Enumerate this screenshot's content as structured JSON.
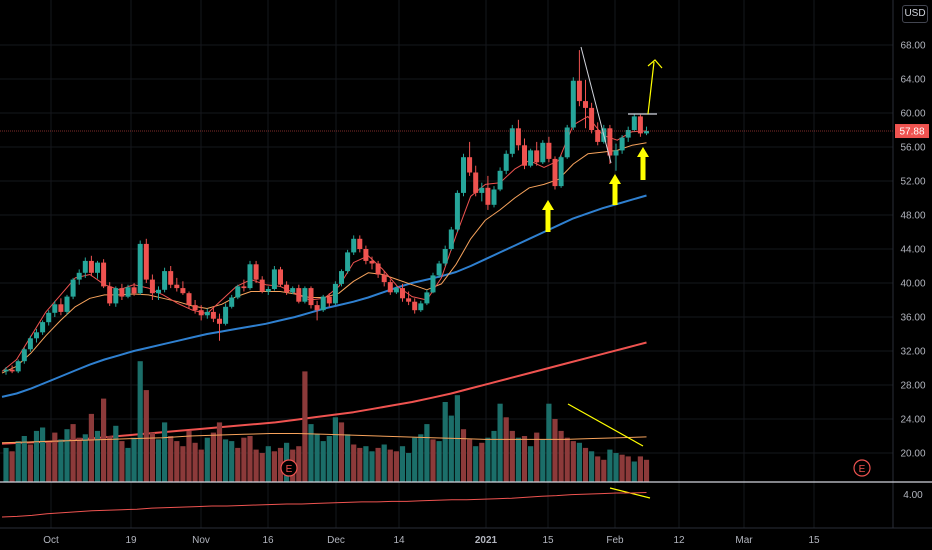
{
  "currency": "USD",
  "last_price_label": "57.88",
  "earnings_marker": "E",
  "chart_data": {
    "type": "candlestick",
    "title": "",
    "price_axis": {
      "ticks": [
        "68.00",
        "64.00",
        "60.00",
        "56.00",
        "52.00",
        "48.00",
        "44.00",
        "40.00",
        "36.00",
        "32.00",
        "28.00",
        "24.00",
        "20.00"
      ],
      "range": [
        17,
        71
      ]
    },
    "indicator_axis": {
      "ticks": [
        "4.00"
      ]
    },
    "x_axis": {
      "ticks": [
        "Oct",
        "19",
        "Nov",
        "16",
        "Dec",
        "14",
        "2021",
        "15",
        "Feb",
        "12",
        "Mar",
        "15"
      ]
    },
    "last_price": 57.88,
    "colors": {
      "up": "#26a69a",
      "down": "#ef5350",
      "ma_fast": "#ef5350",
      "ma_mid": "#f7a35c",
      "ma_50": "#2f80d0",
      "ma_200": "#ef5350",
      "annotation": "#ffff00"
    },
    "candles": [
      [
        29.6,
        30.1,
        29.2,
        29.8
      ],
      [
        29.8,
        30.3,
        29.4,
        29.6
      ],
      [
        29.6,
        31.0,
        29.4,
        30.8
      ],
      [
        30.8,
        32.4,
        30.5,
        32.2
      ],
      [
        32.2,
        33.8,
        31.9,
        33.5
      ],
      [
        33.5,
        34.6,
        33.0,
        34.2
      ],
      [
        34.2,
        35.6,
        33.9,
        35.4
      ],
      [
        35.4,
        36.8,
        35.0,
        36.5
      ],
      [
        36.5,
        37.9,
        36.0,
        37.5
      ],
      [
        37.5,
        38.2,
        36.2,
        36.6
      ],
      [
        36.6,
        38.6,
        36.3,
        38.4
      ],
      [
        38.4,
        40.6,
        38.1,
        40.4
      ],
      [
        40.4,
        41.6,
        39.8,
        41.2
      ],
      [
        41.2,
        43.0,
        40.6,
        42.6
      ],
      [
        42.6,
        43.2,
        40.8,
        41.2
      ],
      [
        41.2,
        42.6,
        40.5,
        42.4
      ],
      [
        42.4,
        42.8,
        39.4,
        39.6
      ],
      [
        39.6,
        40.1,
        37.3,
        37.6
      ],
      [
        37.6,
        39.6,
        37.2,
        39.4
      ],
      [
        39.4,
        39.9,
        38.0,
        38.4
      ],
      [
        38.4,
        39.8,
        38.2,
        39.5
      ],
      [
        39.5,
        40.0,
        38.5,
        38.8
      ],
      [
        38.8,
        45.0,
        38.6,
        44.6
      ],
      [
        44.6,
        45.2,
        40.0,
        40.4
      ],
      [
        40.4,
        41.0,
        38.0,
        38.8
      ],
      [
        38.8,
        39.6,
        38.0,
        39.2
      ],
      [
        39.2,
        41.8,
        38.9,
        41.4
      ],
      [
        41.4,
        42.0,
        39.4,
        39.8
      ],
      [
        39.8,
        40.6,
        39.0,
        39.4
      ],
      [
        39.4,
        40.2,
        38.6,
        38.8
      ],
      [
        38.8,
        39.0,
        37.0,
        37.4
      ],
      [
        37.4,
        38.0,
        36.4,
        36.8
      ],
      [
        36.8,
        37.4,
        35.6,
        36.2
      ],
      [
        36.2,
        37.0,
        35.8,
        36.6
      ],
      [
        36.6,
        37.2,
        35.4,
        35.8
      ],
      [
        35.8,
        36.4,
        33.2,
        35.2
      ],
      [
        35.2,
        37.6,
        35.0,
        37.2
      ],
      [
        37.2,
        38.6,
        37.0,
        38.3
      ],
      [
        38.3,
        39.8,
        38.1,
        39.6
      ],
      [
        39.6,
        40.4,
        39.0,
        39.4
      ],
      [
        39.4,
        42.6,
        39.2,
        42.2
      ],
      [
        42.2,
        42.6,
        40.0,
        40.4
      ],
      [
        40.4,
        40.8,
        38.8,
        39.0
      ],
      [
        39.0,
        39.6,
        38.6,
        39.3
      ],
      [
        39.3,
        42.0,
        39.1,
        41.6
      ],
      [
        41.6,
        41.9,
        39.6,
        39.8
      ],
      [
        39.8,
        40.2,
        38.6,
        38.9
      ],
      [
        38.9,
        39.6,
        38.7,
        39.4
      ],
      [
        39.4,
        39.8,
        37.6,
        37.8
      ],
      [
        37.8,
        39.6,
        37.6,
        39.4
      ],
      [
        39.4,
        39.6,
        37.0,
        37.4
      ],
      [
        37.4,
        37.9,
        35.6,
        36.8
      ],
      [
        36.8,
        38.6,
        36.6,
        38.4
      ],
      [
        38.4,
        38.8,
        37.2,
        37.6
      ],
      [
        37.6,
        40.2,
        37.4,
        39.9
      ],
      [
        39.9,
        41.6,
        39.6,
        41.4
      ],
      [
        41.4,
        43.9,
        41.1,
        43.6
      ],
      [
        43.6,
        45.6,
        43.3,
        45.2
      ],
      [
        45.2,
        45.6,
        43.6,
        44.0
      ],
      [
        44.0,
        44.4,
        42.2,
        42.6
      ],
      [
        42.6,
        43.1,
        41.6,
        42.3
      ],
      [
        42.3,
        42.6,
        40.6,
        41.0
      ],
      [
        41.0,
        41.4,
        39.6,
        40.1
      ],
      [
        40.1,
        40.4,
        38.6,
        38.9
      ],
      [
        38.9,
        39.6,
        38.7,
        39.4
      ],
      [
        39.4,
        39.9,
        37.8,
        38.2
      ],
      [
        38.2,
        39.0,
        37.4,
        37.8
      ],
      [
        37.8,
        38.2,
        36.4,
        36.8
      ],
      [
        36.8,
        37.9,
        36.6,
        37.6
      ],
      [
        37.6,
        39.2,
        37.4,
        38.9
      ],
      [
        38.9,
        41.2,
        38.8,
        40.9
      ],
      [
        40.9,
        42.6,
        40.6,
        42.3
      ],
      [
        42.3,
        44.4,
        42.0,
        44.0
      ],
      [
        44.0,
        46.6,
        43.8,
        46.3
      ],
      [
        46.3,
        50.9,
        46.0,
        50.6
      ],
      [
        50.6,
        55.2,
        50.2,
        54.8
      ],
      [
        54.8,
        56.6,
        52.6,
        53.0
      ],
      [
        53.0,
        53.8,
        50.2,
        50.6
      ],
      [
        50.6,
        51.8,
        49.6,
        51.2
      ],
      [
        51.2,
        52.6,
        48.6,
        49.2
      ],
      [
        49.2,
        51.4,
        48.9,
        51.0
      ],
      [
        51.0,
        53.6,
        50.8,
        53.2
      ],
      [
        53.2,
        55.6,
        52.8,
        55.2
      ],
      [
        55.2,
        58.6,
        54.8,
        58.2
      ],
      [
        58.2,
        59.2,
        55.6,
        56.2
      ],
      [
        56.2,
        57.0,
        53.4,
        53.8
      ],
      [
        53.8,
        55.8,
        53.6,
        55.6
      ],
      [
        55.6,
        56.6,
        53.8,
        54.2
      ],
      [
        54.2,
        56.8,
        54.0,
        56.5
      ],
      [
        56.5,
        57.2,
        54.2,
        54.6
      ],
      [
        54.6,
        54.9,
        51.0,
        51.4
      ],
      [
        51.4,
        55.0,
        51.2,
        54.8
      ],
      [
        54.8,
        58.6,
        54.6,
        58.3
      ],
      [
        58.3,
        64.2,
        58.0,
        63.8
      ],
      [
        63.8,
        67.4,
        60.8,
        61.4
      ],
      [
        61.4,
        63.9,
        58.2,
        60.6
      ],
      [
        60.6,
        61.2,
        57.6,
        58.0
      ],
      [
        58.0,
        58.9,
        56.2,
        56.6
      ],
      [
        56.6,
        58.6,
        56.4,
        58.2
      ],
      [
        58.2,
        58.6,
        54.0,
        55.0
      ],
      [
        55.0,
        56.4,
        53.2,
        55.6
      ],
      [
        55.6,
        57.4,
        55.2,
        57.1
      ],
      [
        57.1,
        58.4,
        56.6,
        58.0
      ],
      [
        58.0,
        59.9,
        57.8,
        59.6
      ],
      [
        59.6,
        59.8,
        57.2,
        57.6
      ],
      [
        57.6,
        58.4,
        57.4,
        57.88
      ]
    ],
    "volume": [
      [
        20.6,
        "up"
      ],
      [
        20.2,
        "down"
      ],
      [
        21.4,
        "up"
      ],
      [
        22.0,
        "up"
      ],
      [
        21.0,
        "down"
      ],
      [
        22.6,
        "up"
      ],
      [
        23.0,
        "up"
      ],
      [
        21.2,
        "down"
      ],
      [
        22.4,
        "down"
      ],
      [
        21.6,
        "up"
      ],
      [
        22.8,
        "up"
      ],
      [
        23.4,
        "down"
      ],
      [
        21.8,
        "down"
      ],
      [
        22.2,
        "up"
      ],
      [
        24.6,
        "down"
      ],
      [
        22.6,
        "up"
      ],
      [
        26.4,
        "down"
      ],
      [
        22.0,
        "down"
      ],
      [
        23.2,
        "up"
      ],
      [
        21.4,
        "down"
      ],
      [
        20.6,
        "up"
      ],
      [
        21.8,
        "up"
      ],
      [
        30.8,
        "up"
      ],
      [
        27.4,
        "down"
      ],
      [
        22.4,
        "down"
      ],
      [
        21.6,
        "up"
      ],
      [
        23.6,
        "up"
      ],
      [
        22.0,
        "down"
      ],
      [
        21.4,
        "down"
      ],
      [
        20.8,
        "down"
      ],
      [
        22.6,
        "down"
      ],
      [
        21.2,
        "down"
      ],
      [
        20.4,
        "down"
      ],
      [
        21.8,
        "up"
      ],
      [
        22.4,
        "down"
      ],
      [
        23.6,
        "down"
      ],
      [
        21.6,
        "up"
      ],
      [
        21.4,
        "up"
      ],
      [
        20.6,
        "down"
      ],
      [
        21.8,
        "down"
      ],
      [
        22.0,
        "down"
      ],
      [
        20.4,
        "down"
      ],
      [
        20.0,
        "down"
      ],
      [
        20.8,
        "up"
      ],
      [
        20.2,
        "down"
      ],
      [
        20.6,
        "down"
      ],
      [
        21.2,
        "up"
      ],
      [
        20.4,
        "down"
      ],
      [
        20.8,
        "down"
      ],
      [
        29.6,
        "down"
      ],
      [
        23.4,
        "up"
      ],
      [
        22.2,
        "up"
      ],
      [
        21.4,
        "up"
      ],
      [
        22.0,
        "up"
      ],
      [
        24.2,
        "up"
      ],
      [
        23.6,
        "down"
      ],
      [
        22.2,
        "up"
      ],
      [
        21.0,
        "down"
      ],
      [
        20.6,
        "down"
      ],
      [
        20.8,
        "up"
      ],
      [
        20.2,
        "up"
      ],
      [
        20.6,
        "down"
      ],
      [
        21.0,
        "up"
      ],
      [
        20.4,
        "down"
      ],
      [
        20.2,
        "down"
      ],
      [
        20.8,
        "up"
      ],
      [
        20.0,
        "up"
      ],
      [
        21.8,
        "up"
      ],
      [
        22.2,
        "up"
      ],
      [
        23.4,
        "up"
      ],
      [
        21.6,
        "down"
      ],
      [
        21.4,
        "up"
      ],
      [
        26.0,
        "up"
      ],
      [
        24.4,
        "up"
      ],
      [
        26.8,
        "up"
      ],
      [
        22.8,
        "down"
      ],
      [
        21.6,
        "down"
      ],
      [
        20.8,
        "up"
      ],
      [
        21.2,
        "down"
      ],
      [
        21.8,
        "up"
      ],
      [
        22.6,
        "up"
      ],
      [
        25.8,
        "up"
      ],
      [
        24.2,
        "down"
      ],
      [
        22.6,
        "down"
      ],
      [
        21.8,
        "up"
      ],
      [
        22.0,
        "down"
      ],
      [
        20.8,
        "up"
      ],
      [
        22.4,
        "down"
      ],
      [
        21.6,
        "up"
      ],
      [
        25.8,
        "up"
      ],
      [
        24.0,
        "down"
      ],
      [
        22.6,
        "down"
      ],
      [
        21.8,
        "down"
      ],
      [
        21.4,
        "down"
      ],
      [
        21.2,
        "up"
      ],
      [
        20.6,
        "down"
      ],
      [
        20.2,
        "up"
      ],
      [
        19.6,
        "down"
      ],
      [
        19.2,
        "down"
      ],
      [
        20.4,
        "up"
      ],
      [
        20.0,
        "up"
      ],
      [
        19.8,
        "down"
      ],
      [
        19.6,
        "down"
      ],
      [
        19.0,
        "up"
      ],
      [
        19.6,
        "down"
      ],
      [
        19.2,
        "down"
      ]
    ],
    "volume_ma": [
      21.2,
      21.3,
      21.4,
      21.5,
      21.6,
      21.7,
      21.8,
      22.0,
      22.1,
      22.2,
      22.3,
      22.3,
      22.2,
      22.1,
      22.0,
      21.9,
      21.8,
      21.7,
      21.6,
      21.6,
      21.6,
      21.6,
      21.7,
      21.8,
      21.9
    ],
    "ma_fast": [
      29.6,
      31.0,
      33.8,
      36.6,
      38.6,
      40.6,
      41.0,
      39.8,
      39.2,
      39.8,
      39.4,
      38.6,
      37.6,
      36.8,
      36.4,
      38.0,
      39.6,
      40.4,
      39.8,
      39.6,
      38.8,
      38.0,
      38.2,
      39.6,
      42.4,
      43.2,
      41.6,
      39.6,
      38.4,
      38.0,
      40.6,
      45.6,
      50.2,
      51.6,
      51.8,
      53.4,
      54.4,
      53.6,
      54.4,
      58.6,
      59.6,
      57.4,
      56.8,
      57.8,
      57.9
    ],
    "ma_mid": [
      29.4,
      30.2,
      31.8,
      33.8,
      35.6,
      37.2,
      38.2,
      38.6,
      38.6,
      38.7,
      38.6,
      38.2,
      37.8,
      37.3,
      37.0,
      37.5,
      38.4,
      39.0,
      39.0,
      39.0,
      38.7,
      38.3,
      38.3,
      38.8,
      40.2,
      41.2,
      41.0,
      40.4,
      39.8,
      39.2,
      39.9,
      42.2,
      45.2,
      47.4,
      48.6,
      50.0,
      51.2,
      51.6,
      52.2,
      54.0,
      55.2,
      55.4,
      55.6,
      56.2,
      56.5
    ],
    "ma_50": [
      26.6,
      27.0,
      27.6,
      28.3,
      29.0,
      29.7,
      30.4,
      31.0,
      31.5,
      32.0,
      32.4,
      32.8,
      33.2,
      33.6,
      34.0,
      34.3,
      34.6,
      34.9,
      35.2,
      35.6,
      36.0,
      36.5,
      37.0,
      37.4,
      37.8,
      38.3,
      38.9,
      39.5,
      40.0,
      40.4,
      40.8,
      41.3,
      42.0,
      42.8,
      43.6,
      44.4,
      45.2,
      46.0,
      46.8,
      47.6,
      48.2,
      48.8,
      49.3,
      49.8,
      50.3
    ],
    "ma_200": [
      21.1,
      21.2,
      21.3,
      21.4,
      21.6,
      21.8,
      22.0,
      22.2,
      22.4,
      22.6,
      22.8,
      23.0,
      23.2,
      23.4,
      23.6,
      23.9,
      24.2,
      24.5,
      24.8,
      25.2,
      25.6,
      26.0,
      26.5,
      27.0,
      27.6,
      28.2,
      28.8,
      29.4,
      30.0,
      30.6,
      31.2,
      31.8,
      32.4,
      33.0
    ],
    "indicator": [
      0.2,
      0.3,
      0.5,
      0.8,
      1.0,
      1.2,
      1.4,
      1.5,
      1.6,
      1.7,
      1.9,
      2.0,
      2.1,
      2.2,
      2.3,
      2.3,
      2.4,
      2.5,
      2.6,
      2.7,
      2.7,
      2.8,
      2.9,
      3.0,
      3.1,
      3.1,
      3.2,
      3.2,
      3.3,
      3.4,
      3.5,
      3.5,
      3.6,
      3.7,
      3.8,
      4.0,
      4.2,
      4.3,
      4.5,
      4.6,
      4.7,
      4.8,
      4.8,
      4.9
    ]
  }
}
